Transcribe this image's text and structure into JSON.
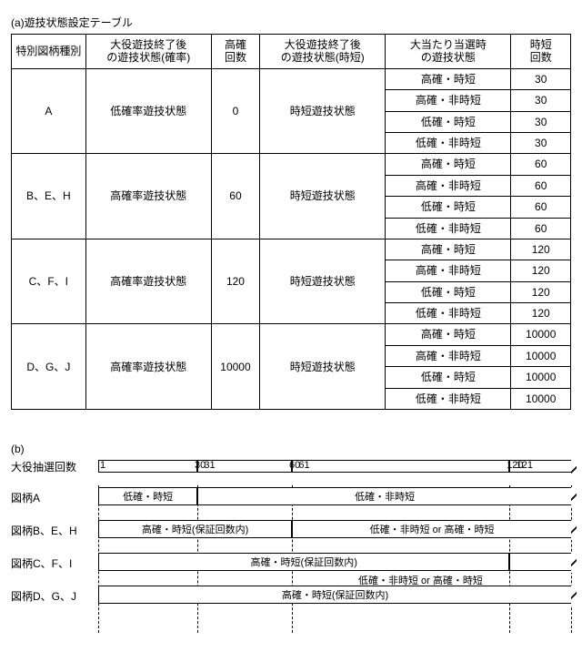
{
  "section_a": {
    "title": "(a)遊技状態設定テーブル",
    "columns": [
      "特別図柄種別",
      "大役遊技終了後\nの遊技状態(確率)",
      "高確\n回数",
      "大役遊技終了後\nの遊技状態(時短)",
      "大当たり当選時\nの遊技状態",
      "時短\n回数"
    ],
    "groups": [
      {
        "type": "A",
        "after_prob": "低確率遊技状態",
        "high_count": "0",
        "after_short": "時短遊技状態",
        "rows": [
          {
            "win": "高確・時短",
            "short": "30"
          },
          {
            "win": "高確・非時短",
            "short": "30"
          },
          {
            "win": "低確・時短",
            "short": "30"
          },
          {
            "win": "低確・非時短",
            "short": "30"
          }
        ]
      },
      {
        "type": "B、E、H",
        "after_prob": "高確率遊技状態",
        "high_count": "60",
        "after_short": "時短遊技状態",
        "rows": [
          {
            "win": "高確・時短",
            "short": "60"
          },
          {
            "win": "高確・非時短",
            "short": "60"
          },
          {
            "win": "低確・時短",
            "short": "60"
          },
          {
            "win": "低確・非時短",
            "short": "60"
          }
        ]
      },
      {
        "type": "C、F、I",
        "after_prob": "高確率遊技状態",
        "high_count": "120",
        "after_short": "時短遊技状態",
        "rows": [
          {
            "win": "高確・時短",
            "short": "120"
          },
          {
            "win": "高確・非時短",
            "short": "120"
          },
          {
            "win": "低確・時短",
            "short": "120"
          },
          {
            "win": "低確・非時短",
            "short": "120"
          }
        ]
      },
      {
        "type": "D、G、J",
        "after_prob": "高確率遊技状態",
        "high_count": "10000",
        "after_short": "時短遊技状態",
        "rows": [
          {
            "win": "高確・時短",
            "short": "10000"
          },
          {
            "win": "高確・非時短",
            "short": "10000"
          },
          {
            "win": "低確・時短",
            "short": "10000"
          },
          {
            "win": "低確・非時短",
            "short": "10000"
          }
        ]
      }
    ]
  },
  "section_b": {
    "title": "(b)",
    "axis_label": "大役抽選回数",
    "ticks": [
      {
        "label": "1",
        "pct": 0
      },
      {
        "label": "30",
        "pct": 20
      },
      {
        "label": "31",
        "pct": 22
      },
      {
        "label": "60",
        "pct": 40
      },
      {
        "label": "61",
        "pct": 42
      },
      {
        "label": "120",
        "pct": 86
      },
      {
        "label": "121",
        "pct": 88
      }
    ],
    "vlines_pct": [
      0,
      21,
      41,
      87,
      100
    ],
    "rows": [
      {
        "label": "図柄A",
        "segs": [
          {
            "text": "低確・時短",
            "l": 0,
            "r": 21,
            "open": false
          },
          {
            "text": "低確・非時短",
            "l": 21,
            "r": 100,
            "open": true
          }
        ]
      },
      {
        "label": "図柄B、E、H",
        "segs": [
          {
            "text": "高確・時短(保証回数内)",
            "l": 0,
            "r": 41,
            "open": false
          },
          {
            "text": "低確・非時短 or 高確・時短",
            "l": 41,
            "r": 100,
            "open": true
          }
        ]
      },
      {
        "label": "図柄C、F、I",
        "segs": [
          {
            "text": "高確・時短(保証回数内)",
            "l": 0,
            "r": 87,
            "open": false
          },
          {
            "text": "",
            "l": 87,
            "r": 100,
            "open": true
          }
        ],
        "note": {
          "text": "低確・非時短 or 高確・時短",
          "l": 55
        }
      },
      {
        "label": "図柄D、G、J",
        "segs": [
          {
            "text": "高確・時短(保証回数内)",
            "l": 0,
            "r": 100,
            "open": true
          }
        ]
      }
    ]
  }
}
